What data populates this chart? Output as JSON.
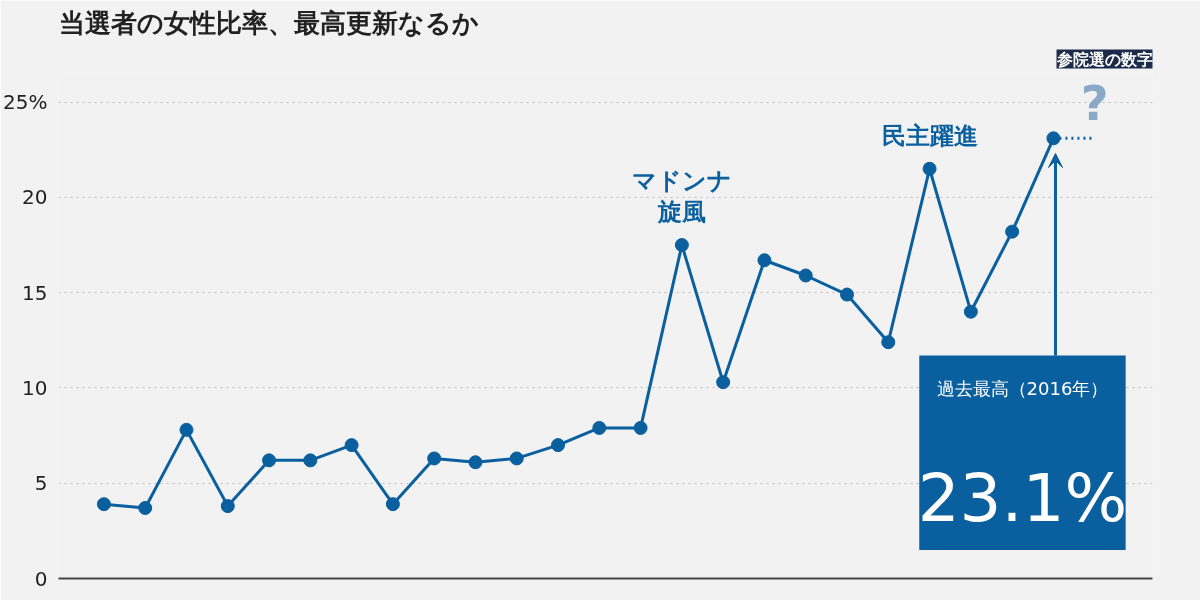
{
  "chart_data": {
    "type": "line",
    "title": "当選者の女性比率、最高更新なるか",
    "categories": [
      null,
      null,
      null,
      null,
      null,
      null,
      null,
      null,
      null,
      null,
      null,
      null,
      null,
      null,
      null,
      null,
      null,
      null,
      null,
      null,
      null,
      null,
      null,
      null,
      null
    ],
    "series": [
      {
        "color": "#0a5f9e",
        "marker": "circle",
        "line_style": "solid",
        "values": [
          3.9,
          3.7,
          7.8,
          3.8,
          6.2,
          6.2,
          7.0,
          3.9,
          6.3,
          6.1,
          6.3,
          7.0,
          7.9,
          7.9,
          17.5,
          10.3,
          16.7,
          15.9,
          14.9,
          12.4,
          21.5,
          14.0,
          18.2,
          23.1,
          null
        ]
      },
      {
        "color": "#0a5f9e",
        "marker": "none",
        "line_style": "dotted",
        "values": [
          null,
          null,
          null,
          null,
          null,
          null,
          null,
          null,
          null,
          null,
          null,
          null,
          null,
          null,
          null,
          null,
          null,
          null,
          null,
          null,
          null,
          null,
          null,
          23.1,
          23.1
        ]
      }
    ],
    "ylim": [
      0,
      26.5
    ],
    "yticks": [
      0,
      5,
      10,
      15,
      20,
      {
        "value": 25,
        "label": "25%"
      }
    ],
    "grid": "y",
    "tick_labels": "y",
    "annotations": [
      "参院選の数字",
      "過去最高（2016年）",
      "23.1%",
      {
        "text": "マドンナ",
        "y": 17.5
      },
      {
        "text": "旋風",
        "y": 17.5
      },
      {
        "text": "民主躍進",
        "y": 21.5
      },
      {
        "text": "?",
        "y": 23.1
      }
    ]
  }
}
